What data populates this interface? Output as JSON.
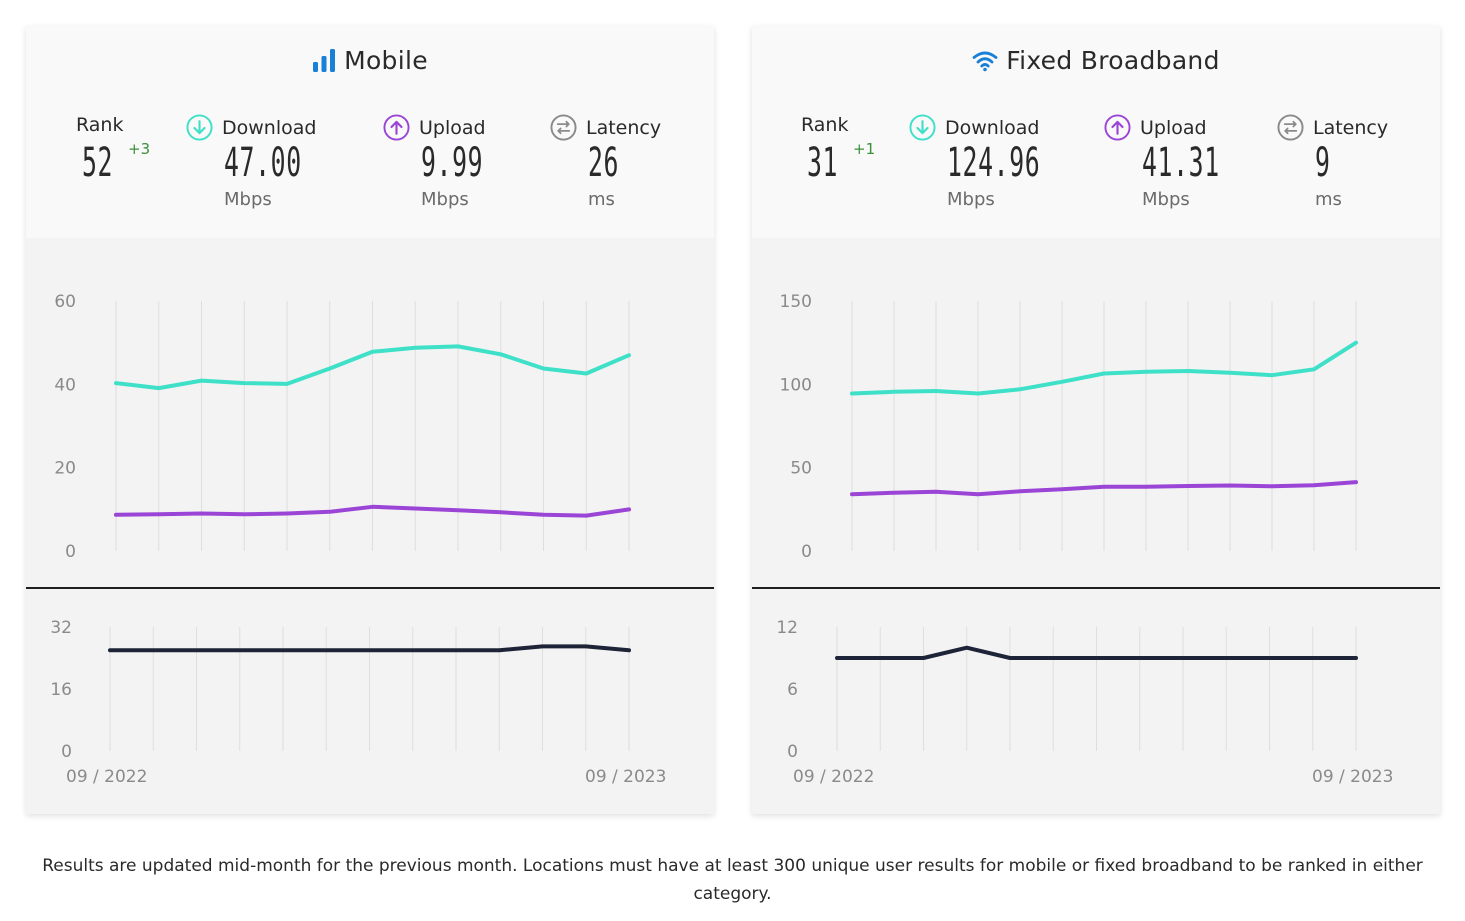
{
  "panels": {
    "mobile": {
      "title": "Mobile",
      "icon": "signal-bars-icon",
      "rank_label": "Rank",
      "rank_value": "52",
      "rank_change": "+3",
      "download_label": "Download",
      "download_value": "47.00",
      "download_unit": "Mbps",
      "upload_label": "Upload",
      "upload_value": "9.99",
      "upload_unit": "Mbps",
      "latency_label": "Latency",
      "latency_value": "26",
      "latency_unit": "ms"
    },
    "fixed": {
      "title": "Fixed Broadband",
      "icon": "wifi-icon",
      "rank_label": "Rank",
      "rank_value": "31",
      "rank_change": "+1",
      "download_label": "Download",
      "download_value": "124.96",
      "download_unit": "Mbps",
      "upload_label": "Upload",
      "upload_value": "41.31",
      "upload_unit": "Mbps",
      "latency_label": "Latency",
      "latency_value": "9",
      "latency_unit": "ms"
    }
  },
  "colors": {
    "download": "#3ee0c8",
    "upload": "#9b45d6",
    "latency": "#1e2438",
    "accent_blue": "#1a7fd6"
  },
  "chart_data": [
    {
      "id": "mobile-speed",
      "type": "line",
      "x": [
        "09 / 2022",
        "10 / 2022",
        "11 / 2022",
        "12 / 2022",
        "01 / 2023",
        "02 / 2023",
        "03 / 2023",
        "04 / 2023",
        "05 / 2023",
        "06 / 2023",
        "07 / 2023",
        "08 / 2023",
        "09 / 2023"
      ],
      "series": [
        {
          "key": "download",
          "values": [
            40.3,
            39.1,
            40.9,
            40.3,
            40.1,
            43.8,
            47.8,
            48.8,
            49.1,
            47.2,
            43.8,
            42.6,
            47.0
          ]
        },
        {
          "key": "upload",
          "values": [
            8.7,
            8.8,
            9.0,
            8.8,
            9.0,
            9.4,
            10.6,
            10.2,
            9.8,
            9.3,
            8.7,
            8.5,
            9.99
          ]
        }
      ],
      "yticks": [
        0,
        20,
        40,
        60
      ],
      "ylim": [
        0,
        60
      ],
      "grid": "vertical"
    },
    {
      "id": "mobile-latency",
      "type": "line",
      "x": [
        "09 / 2022",
        "10 / 2022",
        "11 / 2022",
        "12 / 2022",
        "01 / 2023",
        "02 / 2023",
        "03 / 2023",
        "04 / 2023",
        "05 / 2023",
        "06 / 2023",
        "07 / 2023",
        "08 / 2023",
        "09 / 2023"
      ],
      "series": [
        {
          "key": "latency",
          "values": [
            26,
            26,
            26,
            26,
            26,
            26,
            26,
            26,
            26,
            26,
            27,
            27,
            26
          ]
        }
      ],
      "yticks": [
        0,
        16,
        32
      ],
      "ylim": [
        0,
        32
      ],
      "xtick_labels": [
        "09 / 2022",
        "09 / 2023"
      ],
      "grid": "vertical"
    },
    {
      "id": "fixed-speed",
      "type": "line",
      "x": [
        "09 / 2022",
        "10 / 2022",
        "11 / 2022",
        "12 / 2022",
        "01 / 2023",
        "02 / 2023",
        "03 / 2023",
        "04 / 2023",
        "05 / 2023",
        "06 / 2023",
        "07 / 2023",
        "08 / 2023",
        "09 / 2023"
      ],
      "series": [
        {
          "key": "download",
          "values": [
            94.5,
            95.5,
            96.0,
            94.5,
            97.0,
            101.5,
            106.5,
            107.5,
            108.0,
            107.0,
            105.5,
            109.0,
            124.96
          ]
        },
        {
          "key": "upload",
          "values": [
            34.0,
            35.0,
            35.5,
            34.0,
            35.8,
            37.0,
            38.5,
            38.5,
            39.0,
            39.3,
            38.8,
            39.5,
            41.31
          ]
        }
      ],
      "yticks": [
        0,
        50,
        100,
        150
      ],
      "ylim": [
        0,
        150
      ],
      "grid": "vertical"
    },
    {
      "id": "fixed-latency",
      "type": "line",
      "x": [
        "09 / 2022",
        "10 / 2022",
        "11 / 2022",
        "12 / 2022",
        "01 / 2023",
        "02 / 2023",
        "03 / 2023",
        "04 / 2023",
        "05 / 2023",
        "06 / 2023",
        "07 / 2023",
        "08 / 2023",
        "09 / 2023"
      ],
      "series": [
        {
          "key": "latency",
          "values": [
            9,
            9,
            9,
            10,
            9,
            9,
            9,
            9,
            9,
            9,
            9,
            9,
            9
          ]
        }
      ],
      "yticks": [
        0,
        6,
        12
      ],
      "ylim": [
        0,
        12
      ],
      "xtick_labels": [
        "09 / 2022",
        "09 / 2023"
      ],
      "grid": "vertical"
    }
  ],
  "footnote": "Results are updated mid-month for the previous month. Locations must have at least 300 unique user results for mobile or fixed broadband to be ranked in either category."
}
